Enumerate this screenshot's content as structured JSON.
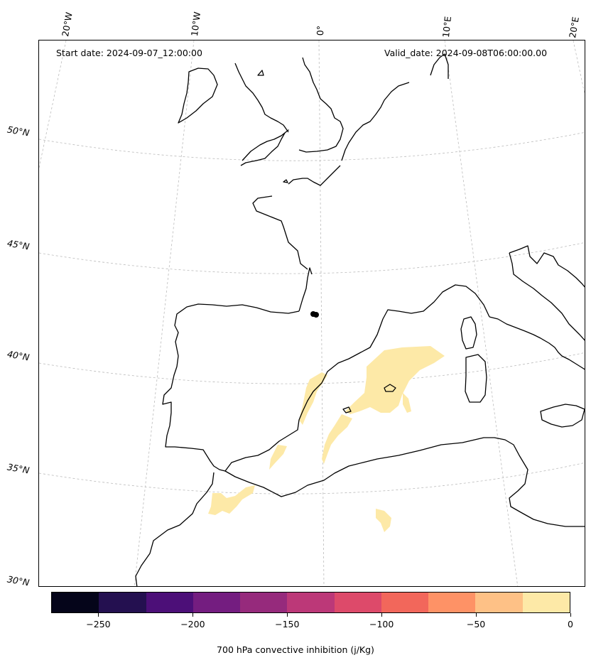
{
  "header": {
    "start_date": "Start date: 2024-09-07_12:00:00",
    "valid_date": "Valid_date: 2024-09-08T06:00:00.00"
  },
  "longitude_labels": [
    "20°W",
    "10°W",
    "0°",
    "10°E",
    "20°E"
  ],
  "latitude_labels": [
    "50°N",
    "45°N",
    "40°N",
    "35°N",
    "30°N"
  ],
  "colorbar": {
    "title": "700 hPa convective inhibition (j/Kg)",
    "tick_labels": [
      "−250",
      "−200",
      "−150",
      "−100",
      "−50",
      "0"
    ],
    "tick_values": [
      -250,
      -200,
      -150,
      -100,
      -50,
      0
    ],
    "range": [
      -275,
      0
    ],
    "colors": [
      "#05051a",
      "#241050",
      "#4c0f78",
      "#741d80",
      "#962a7c",
      "#bc3878",
      "#dd4a6a",
      "#f2675b",
      "#fe9266",
      "#fec186",
      "#fde9a7"
    ]
  },
  "map": {
    "coastline_color": "#000000",
    "gridline_color": "#bbbbbb",
    "field_color": "#fde9a7"
  }
}
